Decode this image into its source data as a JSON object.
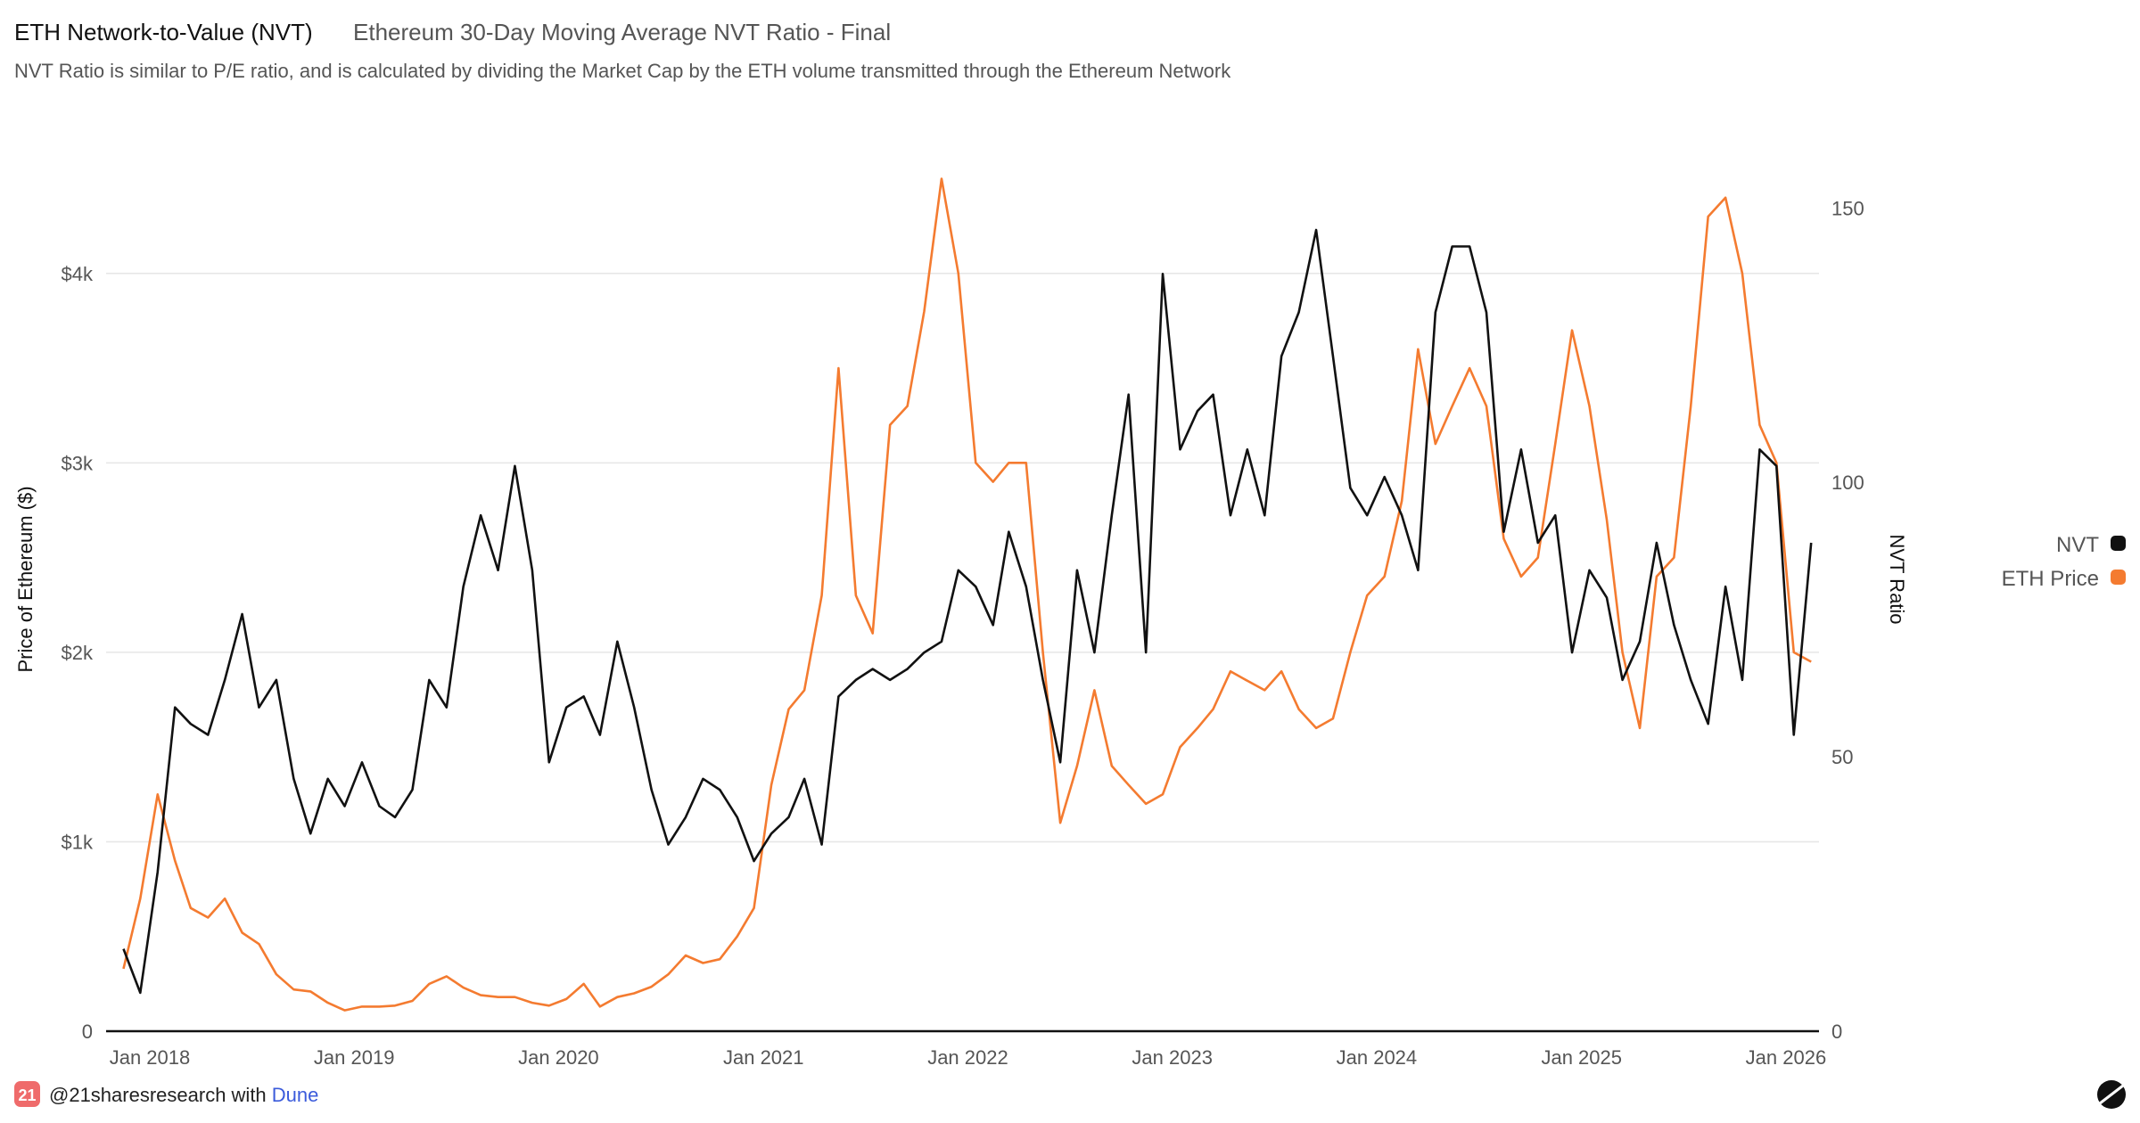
{
  "header": {
    "title": "ETH Network-to-Value (NVT)",
    "subtitle": "Ethereum 30-Day Moving Average NVT Ratio - Final",
    "description": "NVT Ratio is similar to P/E ratio, and is calculated by dividing the Market Cap by the ETH volume transmitted through the Ethereum Network"
  },
  "footer": {
    "logo_text": "21",
    "author": "@21sharesresearch with",
    "link": "Dune"
  },
  "colors": {
    "nvt": "#111111",
    "eth_price": "#F47B30",
    "grid": "#e6e6e6",
    "brand_21": "#ef6b6b"
  },
  "chart_data": {
    "type": "line",
    "title": "ETH Network-to-Value (NVT)",
    "subtitle": "Ethereum 30-Day Moving Average NVT Ratio - Final",
    "xlabel": "",
    "ylabel_left": "Price of Ethereum ($)",
    "ylabel_right": "NVT Ratio",
    "x_ticks": [
      "Jan 2018",
      "Jan 2019",
      "Jan 2020",
      "Jan 2021",
      "Jan 2022",
      "Jan 2023",
      "Jan 2024",
      "Jan 2025",
      "Jan 2026"
    ],
    "y_left_ticks": [
      {
        "value": 0,
        "label": "0"
      },
      {
        "value": 1000,
        "label": "$1k"
      },
      {
        "value": 2000,
        "label": "$2k"
      },
      {
        "value": 3000,
        "label": "$3k"
      },
      {
        "value": 4000,
        "label": "$4k"
      }
    ],
    "y_right_ticks": [
      {
        "value": 0,
        "label": "0"
      },
      {
        "value": 50,
        "label": "50"
      },
      {
        "value": 100,
        "label": "100"
      },
      {
        "value": 150,
        "label": "150"
      }
    ],
    "xlim": [
      "2017-10-15",
      "2026-03-01"
    ],
    "ylim_left": [
      0,
      4780
    ],
    "ylim_right": [
      0,
      165
    ],
    "grid": true,
    "legend_position": "right",
    "x": [
      "2017-11",
      "2017-12",
      "2018-01",
      "2018-02",
      "2018-03",
      "2018-04",
      "2018-05",
      "2018-06",
      "2018-07",
      "2018-08",
      "2018-09",
      "2018-10",
      "2018-11",
      "2018-12",
      "2019-01",
      "2019-02",
      "2019-03",
      "2019-04",
      "2019-05",
      "2019-06",
      "2019-07",
      "2019-08",
      "2019-09",
      "2019-10",
      "2019-11",
      "2019-12",
      "2020-01",
      "2020-02",
      "2020-03",
      "2020-04",
      "2020-05",
      "2020-06",
      "2020-07",
      "2020-08",
      "2020-09",
      "2020-10",
      "2020-11",
      "2020-12",
      "2021-01",
      "2021-02",
      "2021-03",
      "2021-04",
      "2021-05",
      "2021-06",
      "2021-07",
      "2021-08",
      "2021-09",
      "2021-10",
      "2021-11",
      "2021-12",
      "2022-01",
      "2022-02",
      "2022-03",
      "2022-04",
      "2022-05",
      "2022-06",
      "2022-07",
      "2022-08",
      "2022-09",
      "2022-10",
      "2022-11",
      "2022-12",
      "2023-01",
      "2023-02",
      "2023-03",
      "2023-04",
      "2023-05",
      "2023-06",
      "2023-07",
      "2023-08",
      "2023-09",
      "2023-10",
      "2023-11",
      "2023-12",
      "2024-01",
      "2024-02",
      "2024-03",
      "2024-04",
      "2024-05",
      "2024-06",
      "2024-07",
      "2024-08",
      "2024-09",
      "2024-10",
      "2024-11",
      "2024-12",
      "2025-01",
      "2025-02",
      "2025-03",
      "2025-04",
      "2025-05",
      "2025-06",
      "2025-07",
      "2025-08",
      "2025-09",
      "2025-10",
      "2025-11",
      "2025-12",
      "2026-01",
      "2026-02"
    ],
    "series": [
      {
        "name": "NVT",
        "axis": "right",
        "color": "#111111",
        "values": [
          15,
          7,
          29,
          59,
          56,
          54,
          64,
          76,
          59,
          64,
          46,
          36,
          46,
          41,
          49,
          41,
          39,
          44,
          64,
          59,
          81,
          94,
          84,
          103,
          84,
          49,
          59,
          61,
          54,
          71,
          59,
          44,
          34,
          39,
          46,
          44,
          39,
          31,
          36,
          39,
          46,
          34,
          61,
          64,
          66,
          64,
          66,
          69,
          71,
          84,
          81,
          74,
          91,
          81,
          64,
          49,
          84,
          69,
          94,
          116,
          69,
          138,
          106,
          113,
          116,
          94,
          106,
          94,
          123,
          131,
          146,
          123,
          99,
          94,
          101,
          94,
          84,
          131,
          143,
          143,
          131,
          91,
          106,
          89,
          94,
          69,
          84,
          79,
          64,
          71,
          89,
          74,
          64,
          56,
          81,
          64,
          106,
          103,
          54,
          89
        ]
      },
      {
        "name": "ETH Price",
        "axis": "left",
        "color": "#F47B30",
        "values": [
          330,
          700,
          1250,
          900,
          650,
          600,
          700,
          520,
          460,
          300,
          220,
          210,
          150,
          110,
          130,
          130,
          135,
          160,
          250,
          290,
          230,
          190,
          180,
          180,
          150,
          135,
          170,
          250,
          130,
          180,
          200,
          235,
          300,
          400,
          360,
          380,
          500,
          650,
          1300,
          1700,
          1800,
          2300,
          3500,
          2300,
          2100,
          3200,
          3300,
          3800,
          4500,
          4000,
          3000,
          2900,
          3000,
          3000,
          2000,
          1100,
          1400,
          1800,
          1400,
          1300,
          1200,
          1250,
          1500,
          1600,
          1700,
          1900,
          1850,
          1800,
          1900,
          1700,
          1600,
          1650,
          2000,
          2300,
          2400,
          2800,
          3600,
          3100,
          3300,
          3500,
          3300,
          2600,
          2400,
          2500,
          3100,
          3700,
          3300,
          2700,
          2000,
          1600,
          2400,
          2500,
          3300,
          4300,
          4400,
          4000,
          3200,
          3000,
          2000,
          1950
        ]
      }
    ]
  }
}
